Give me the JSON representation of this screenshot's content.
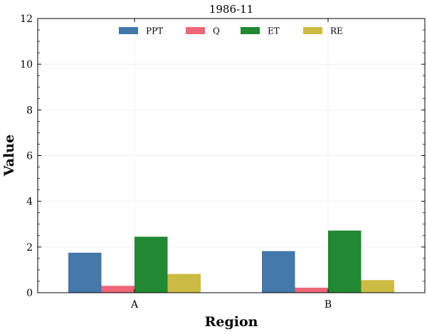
{
  "chart_data": {
    "type": "bar",
    "title": "1986-11",
    "xlabel": "Region",
    "ylabel": "Value",
    "categories": [
      "A",
      "B"
    ],
    "series": [
      {
        "name": "PPT",
        "values": [
          1.75,
          1.82
        ],
        "color": "#4477aa"
      },
      {
        "name": "Q",
        "values": [
          0.3,
          0.22
        ],
        "color": "#ee6677"
      },
      {
        "name": "ET",
        "values": [
          2.45,
          2.72
        ],
        "color": "#228833"
      },
      {
        "name": "RE",
        "values": [
          0.82,
          0.55
        ],
        "color": "#ccbb44"
      }
    ],
    "ylim": [
      0,
      12
    ],
    "yticks": [
      0,
      2,
      4,
      6,
      8,
      10,
      12
    ],
    "grid": true,
    "legend_position": "top-center"
  }
}
